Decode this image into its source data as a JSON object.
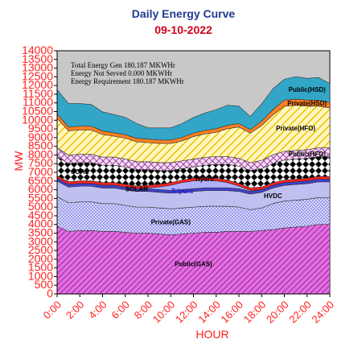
{
  "chart_data": {
    "type": "area",
    "title": "Daily Energy Curve",
    "subtitle": "09-10-2022",
    "xlabel": "HOUR",
    "ylabel": "MW",
    "ylim": [
      0,
      14000
    ],
    "ytick_step": 500,
    "grid": false,
    "x": [
      "0:00",
      "1:00",
      "2:00",
      "3:00",
      "4:00",
      "5:00",
      "6:00",
      "7:00",
      "8:00",
      "9:00",
      "10:00",
      "11:00",
      "12:00",
      "13:00",
      "14:00",
      "15:00",
      "16:00",
      "17:00",
      "18:00",
      "19:00",
      "20:00",
      "21:00",
      "22:00",
      "23:00",
      "24:00"
    ],
    "xtick_labels": [
      "0:00",
      "2:00",
      "4:00",
      "6:00",
      "8:00",
      "10:00",
      "12:00",
      "14:00",
      "16:00",
      "18:00",
      "20:00",
      "22:00",
      "24:00"
    ],
    "annotations": [
      "Total Energy Gen 180.187 MKWHr",
      "Energy Not Served   0.000 MKWHr",
      "Energy Requirement      180.187 MKWHr"
    ],
    "series": [
      {
        "name": "Public(GAS)",
        "color": "#cc44cc",
        "pattern": "hatch-magenta",
        "label_at": 12,
        "label_color": "#000000",
        "values": [
          3900,
          3600,
          3650,
          3650,
          3600,
          3600,
          3550,
          3500,
          3500,
          3450,
          3400,
          3450,
          3500,
          3550,
          3550,
          3600,
          3600,
          3600,
          3650,
          3700,
          3800,
          3850,
          3900,
          4000,
          4000
        ]
      },
      {
        "name": "Private(GAS)",
        "color": "#a0a0f0",
        "pattern": "dots-blue",
        "label_at": 10,
        "label_color": "#000000",
        "values": [
          1700,
          1650,
          1650,
          1650,
          1600,
          1600,
          1550,
          1500,
          1500,
          1500,
          1500,
          1500,
          1500,
          1500,
          1500,
          1450,
          1400,
          1250,
          1300,
          1500,
          1550,
          1550,
          1550,
          1550,
          1550
        ]
      },
      {
        "name": "HVDC",
        "color": "#c0c0f0",
        "pattern": "solid",
        "label_at": 19,
        "label_color": "#000000",
        "values": [
          900,
          900,
          900,
          900,
          900,
          900,
          900,
          900,
          900,
          900,
          900,
          900,
          900,
          900,
          900,
          900,
          900,
          900,
          900,
          900,
          900,
          900,
          900,
          900,
          900
        ]
      },
      {
        "name": "Tripura",
        "color": "#4040d0",
        "pattern": "solid",
        "label_at": 11,
        "label_color": "#2020c0",
        "values": [
          160,
          160,
          160,
          160,
          160,
          160,
          160,
          160,
          160,
          160,
          160,
          160,
          160,
          160,
          160,
          160,
          160,
          160,
          160,
          160,
          160,
          160,
          160,
          160,
          160
        ]
      },
      {
        "name": "SOLAR",
        "color": "#b0b0ff",
        "pattern": "solid",
        "label_at": 7,
        "label_color": "#000000",
        "values": [
          0,
          0,
          0,
          0,
          0,
          0,
          0,
          0,
          50,
          150,
          300,
          400,
          450,
          450,
          400,
          300,
          150,
          50,
          0,
          0,
          0,
          0,
          0,
          0,
          0
        ]
      },
      {
        "name": "Hydro",
        "color": "#ff2020",
        "pattern": "solid",
        "label_at": 13,
        "label_color": "#000000",
        "values": [
          150,
          150,
          150,
          150,
          150,
          150,
          150,
          150,
          150,
          150,
          150,
          150,
          150,
          150,
          150,
          150,
          150,
          150,
          150,
          150,
          150,
          150,
          150,
          150,
          150
        ]
      },
      {
        "name": "COAL",
        "color": "#000000",
        "pattern": "diamond",
        "label_at": 2,
        "label_color": "#000000",
        "values": [
          1100,
          1050,
          1050,
          1050,
          1000,
          1000,
          1000,
          950,
          900,
          800,
          700,
          650,
          650,
          700,
          800,
          900,
          1000,
          1000,
          1050,
          1100,
          1150,
          1150,
          1150,
          1150,
          1150
        ]
      },
      {
        "name": "Public(HFO)",
        "color": "#cc88cc",
        "pattern": "cross-purple",
        "label_at": 22,
        "label_color": "#000000",
        "values": [
          500,
          480,
          480,
          480,
          470,
          470,
          460,
          450,
          450,
          450,
          450,
          450,
          450,
          450,
          450,
          450,
          450,
          450,
          480,
          500,
          500,
          500,
          500,
          500,
          500
        ]
      },
      {
        "name": "Private(HFO)",
        "color": "#ffe040",
        "pattern": "stripe-yellow",
        "label_at": 21,
        "label_color": "#000000",
        "values": [
          1700,
          1400,
          1400,
          1400,
          1300,
          1200,
          1200,
          1150,
          1100,
          1100,
          1100,
          1150,
          1300,
          1350,
          1400,
          1600,
          1800,
          1700,
          2000,
          2300,
          2600,
          2600,
          2500,
          2400,
          2300
        ]
      },
      {
        "name": "Private(HSD)",
        "color": "#ff8020",
        "pattern": "solid",
        "label_at": 22,
        "label_color": "#000000",
        "values": [
          250,
          220,
          220,
          220,
          200,
          200,
          200,
          200,
          200,
          200,
          200,
          200,
          200,
          200,
          200,
          200,
          200,
          200,
          250,
          300,
          350,
          350,
          350,
          350,
          300
        ]
      },
      {
        "name": "Public(HSD)",
        "color": "#33a6c8",
        "pattern": "solid",
        "label_at": 22,
        "label_color": "#000000",
        "values": [
          1400,
          1350,
          1300,
          1250,
          1100,
          1050,
          1000,
          850,
          650,
          700,
          700,
          800,
          900,
          1000,
          1100,
          1150,
          1000,
          750,
          1000,
          1200,
          1200,
          1300,
          1250,
          1300,
          1100
        ]
      }
    ]
  }
}
